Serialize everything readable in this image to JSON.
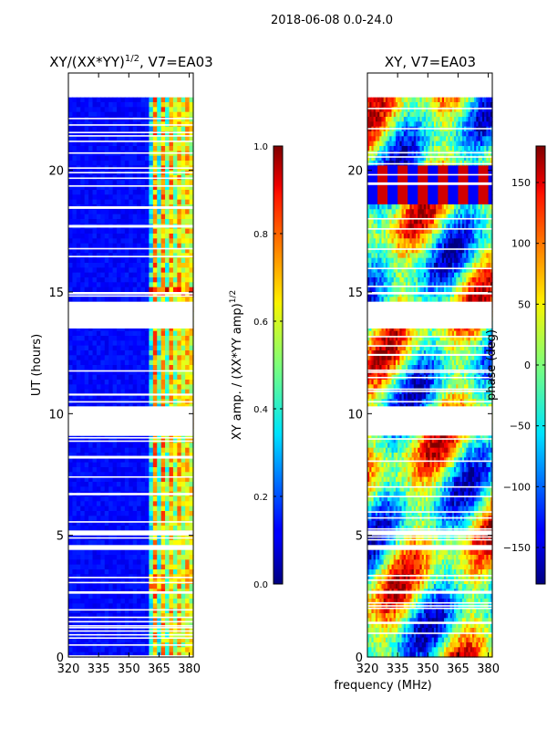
{
  "figure": {
    "suptitle": "2018-06-08 0.0-24.0",
    "shared_xlabel": "frequency (MHz)"
  },
  "chart_data": [
    {
      "type": "heatmap",
      "title": "XY/(XX*YY)",
      "title_power": "1/2",
      "title_suffix": ", V7=EA03",
      "xlabel": "",
      "ylabel": "UT (hours)",
      "xlim": [
        320,
        382
      ],
      "ylim": [
        0,
        24
      ],
      "xticks": [
        "320",
        "335",
        "350",
        "365",
        "380"
      ],
      "xtick_values": [
        320,
        335,
        350,
        365,
        380
      ],
      "yticks": [
        "0",
        "5",
        "10",
        "15",
        "20"
      ],
      "ytick_values": [
        0,
        5,
        10,
        15,
        20
      ],
      "data_x_range": [
        320,
        382
      ],
      "data_y_range": [
        0,
        23
      ],
      "gaps_ut": [
        [
          9.1,
          10.3
        ],
        [
          13.5,
          14.6
        ],
        [
          14.9,
          15.0
        ],
        [
          2.6,
          2.7
        ],
        [
          4.4,
          4.6
        ],
        [
          5.0,
          5.2
        ]
      ],
      "bright_band_mhz": [
        361,
        382
      ],
      "colorbar": {
        "label": "XY amp. / (XX*YY amp)",
        "label_power": "1/2",
        "range": [
          0.0,
          1.0
        ],
        "ticks": [
          "0.0",
          "0.2",
          "0.4",
          "0.6",
          "0.8",
          "1.0"
        ],
        "tick_values": [
          0.0,
          0.2,
          0.4,
          0.6,
          0.8,
          1.0
        ]
      }
    },
    {
      "type": "heatmap",
      "title": "XY, V7=EA03",
      "xlabel": "frequency (MHz)",
      "ylabel": "",
      "xlim": [
        320,
        382
      ],
      "ylim": [
        0,
        24
      ],
      "xticks": [
        "320",
        "335",
        "350",
        "365",
        "380"
      ],
      "xtick_values": [
        320,
        335,
        350,
        365,
        380
      ],
      "yticks": [
        "0",
        "5",
        "10",
        "15",
        "20"
      ],
      "ytick_values": [
        0,
        5,
        10,
        15,
        20
      ],
      "data_x_range": [
        320,
        382
      ],
      "data_y_range": [
        0,
        23
      ],
      "colorbar": {
        "label": "phase (deg)",
        "range": [
          -180,
          180
        ],
        "ticks": [
          "−150",
          "−100",
          "−50",
          "0",
          "50",
          "100",
          "150"
        ],
        "tick_values": [
          -150,
          -100,
          -50,
          0,
          50,
          100,
          150
        ]
      }
    }
  ]
}
